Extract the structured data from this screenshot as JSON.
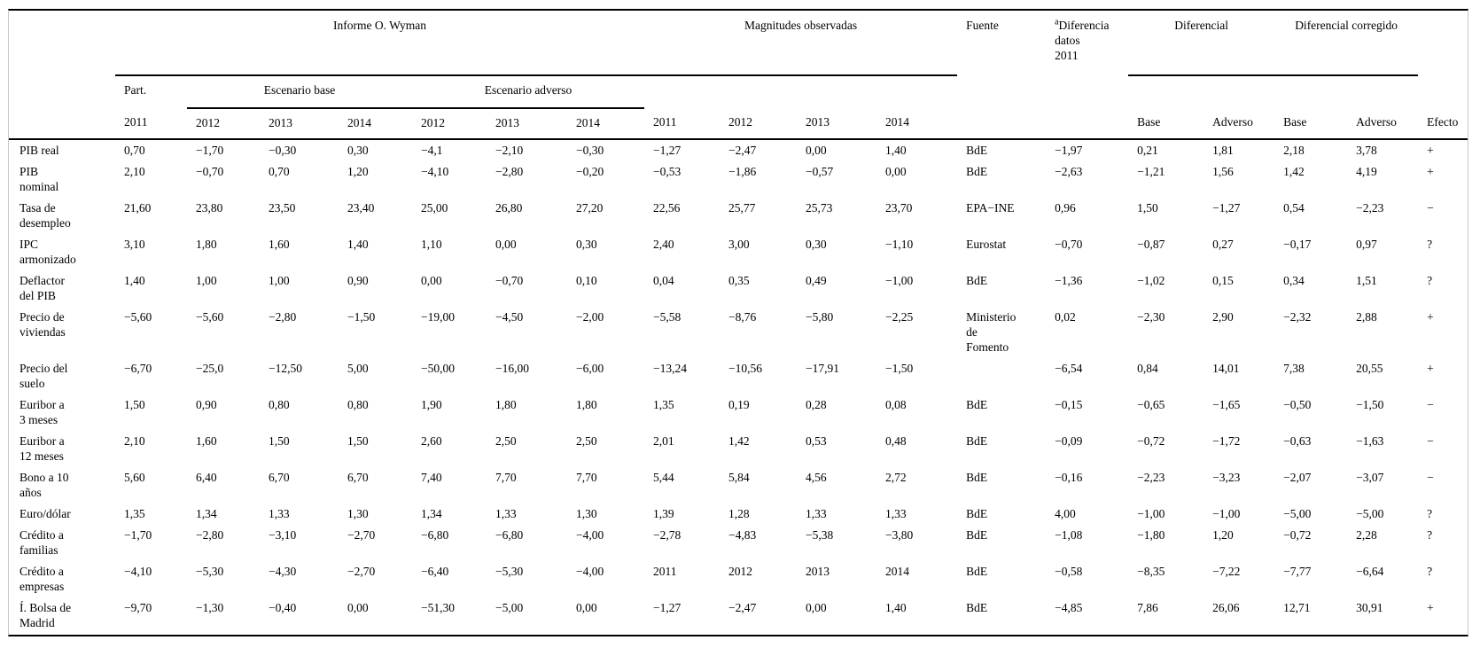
{
  "table": {
    "group_headers": {
      "informe": "Informe O. Wyman",
      "magnitudes": "Magnitudes observadas",
      "fuente": "Fuente",
      "diferencia_note_marker": "a",
      "diferencia": "Diferencia datos 2011",
      "diferencial": "Diferencial",
      "diferencial_corregido": "Diferencial corregido"
    },
    "subgroup_headers": {
      "part": "Part.",
      "escenario_base": "Escenario base",
      "escenario_adverso": "Escenario adverso"
    },
    "year_row": [
      "2011",
      "2012",
      "2013",
      "2014",
      "2012",
      "2013",
      "2014",
      "2011",
      "2012",
      "2013",
      "2014",
      "",
      "",
      "Base",
      "Adverso",
      "Base",
      "Adverso",
      "Efecto"
    ],
    "rows": [
      {
        "label": "PIB real",
        "values": [
          "0,70",
          "−1,70",
          "−0,30",
          "0,30",
          "−4,1",
          "−2,10",
          "−0,30",
          "−1,27",
          "−2,47",
          "0,00",
          "1,40",
          "BdE",
          "−1,97",
          "0,21",
          "1,81",
          "2,18",
          "3,78",
          "+"
        ]
      },
      {
        "label": "PIB nominal",
        "values": [
          "2,10",
          "−0,70",
          "0,70",
          "1,20",
          "−4,10",
          "−2,80",
          "−0,20",
          "−0,53",
          "−1,86",
          "−0,57",
          "0,00",
          "BdE",
          "−2,63",
          "−1,21",
          "1,56",
          "1,42",
          "4,19",
          "+"
        ]
      },
      {
        "label": "Tasa de desempleo",
        "values": [
          "21,60",
          "23,80",
          "23,50",
          "23,40",
          "25,00",
          "26,80",
          "27,20",
          "22,56",
          "25,77",
          "25,73",
          "23,70",
          "EPA−INE",
          "0,96",
          "1,50",
          "−1,27",
          "0,54",
          "−2,23",
          "−"
        ]
      },
      {
        "label": "IPC armonizado",
        "values": [
          "3,10",
          "1,80",
          "1,60",
          "1,40",
          "1,10",
          "0,00",
          "0,30",
          "2,40",
          "3,00",
          "0,30",
          "−1,10",
          "Eurostat",
          "−0,70",
          "−0,87",
          "0,27",
          "−0,17",
          "0,97",
          "?"
        ]
      },
      {
        "label": "Deflactor del PIB",
        "values": [
          "1,40",
          "1,00",
          "1,00",
          "0,90",
          "0,00",
          "−0,70",
          "0,10",
          "0,04",
          "0,35",
          "0,49",
          "−1,00",
          "BdE",
          "−1,36",
          "−1,02",
          "0,15",
          "0,34",
          "1,51",
          "?"
        ]
      },
      {
        "label": "Precio de viviendas",
        "values": [
          "−5,60",
          "−5,60",
          "−2,80",
          "−1,50",
          "−19,00",
          "−4,50",
          "−2,00",
          "−5,58",
          "−8,76",
          "−5,80",
          "−2,25",
          "Ministerio de Fomento",
          "0,02",
          "−2,30",
          "2,90",
          "−2,32",
          "2,88",
          "+"
        ]
      },
      {
        "label": "Precio del suelo",
        "values": [
          "−6,70",
          "−25,0",
          "−12,50",
          "5,00",
          "−50,00",
          "−16,00",
          "−6,00",
          "−13,24",
          "−10,56",
          "−17,91",
          "−1,50",
          "",
          "−6,54",
          "0,84",
          "14,01",
          "7,38",
          "20,55",
          "+"
        ]
      },
      {
        "label": "Euribor a 3 meses",
        "values": [
          "1,50",
          "0,90",
          "0,80",
          "0,80",
          "1,90",
          "1,80",
          "1,80",
          "1,35",
          "0,19",
          "0,28",
          "0,08",
          "BdE",
          "−0,15",
          "−0,65",
          "−1,65",
          "−0,50",
          "−1,50",
          "−"
        ]
      },
      {
        "label": "Euribor a 12 meses",
        "values": [
          "2,10",
          "1,60",
          "1,50",
          "1,50",
          "2,60",
          "2,50",
          "2,50",
          "2,01",
          "1,42",
          "0,53",
          "0,48",
          "BdE",
          "−0,09",
          "−0,72",
          "−1,72",
          "−0,63",
          "−1,63",
          "−"
        ]
      },
      {
        "label": "Bono a 10 años",
        "values": [
          "5,60",
          "6,40",
          "6,70",
          "6,70",
          "7,40",
          "7,70",
          "7,70",
          "5,44",
          "5,84",
          "4,56",
          "2,72",
          "BdE",
          "−0,16",
          "−2,23",
          "−3,23",
          "−2,07",
          "−3,07",
          "−"
        ]
      },
      {
        "label": "Euro/dólar",
        "values": [
          "1,35",
          "1,34",
          "1,33",
          "1,30",
          "1,34",
          "1,33",
          "1,30",
          "1,39",
          "1,28",
          "1,33",
          "1,33",
          "BdE",
          "4,00",
          "−1,00",
          "−1,00",
          "−5,00",
          "−5,00",
          "?"
        ]
      },
      {
        "label": "Crédito a familias",
        "values": [
          "−1,70",
          "−2,80",
          "−3,10",
          "−2,70",
          "−6,80",
          "−6,80",
          "−4,00",
          "−2,78",
          "−4,83",
          "−5,38",
          "−3,80",
          "BdE",
          "−1,08",
          "−1,80",
          "1,20",
          "−0,72",
          "2,28",
          "?"
        ]
      },
      {
        "label": "Crédito a empresas",
        "values": [
          "−4,10",
          "−5,30",
          "−4,30",
          "−2,70",
          "−6,40",
          "−5,30",
          "−4,00",
          "2011",
          "2012",
          "2013",
          "2014",
          "BdE",
          "−0,58",
          "−8,35",
          "−7,22",
          "−7,77",
          "−6,64",
          "?"
        ]
      },
      {
        "label": "Í. Bolsa de Madrid",
        "values": [
          "−9,70",
          "−1,30",
          "−0,40",
          "0,00",
          "−51,30",
          "−5,00",
          "0,00",
          "−1,27",
          "−2,47",
          "0,00",
          "1,40",
          "BdE",
          "−4,85",
          "7,86",
          "26,06",
          "12,71",
          "30,91",
          "+"
        ]
      }
    ]
  }
}
